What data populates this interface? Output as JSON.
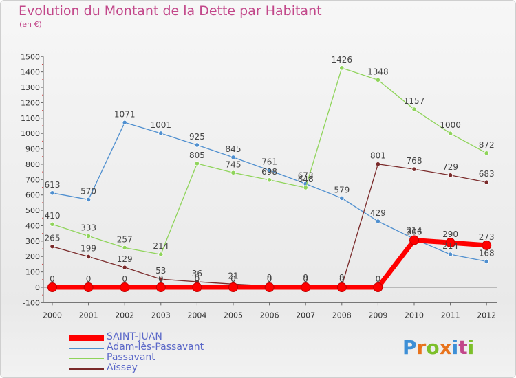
{
  "title": "Evolution du Montant de la Dette par Habitant",
  "subtitle": "(en €)",
  "logo": {
    "text": "Proxiti",
    "colors": [
      "#3d8fd6",
      "#e8731c",
      "#7cbf2a",
      "#e8731c",
      "#3d8fd6",
      "#c2478a",
      "#7cbf2a"
    ]
  },
  "chart_data": {
    "type": "line",
    "x": [
      "2000",
      "2001",
      "2002",
      "2003",
      "2004",
      "2005",
      "2006",
      "2007",
      "2008",
      "2009",
      "2010",
      "2011",
      "2012"
    ],
    "ylim": [
      -100,
      1500
    ],
    "yticks": [
      -100,
      0,
      100,
      200,
      300,
      400,
      500,
      600,
      700,
      800,
      900,
      1000,
      1100,
      1200,
      1300,
      1400,
      1500
    ],
    "grid": false,
    "legend_position": "bottom-left",
    "series": [
      {
        "name": "SAINT-JUAN",
        "color": "#ff0000",
        "values": [
          0,
          0,
          0,
          0,
          0,
          0,
          0,
          0,
          0,
          0,
          306,
          290,
          273
        ],
        "labels": [
          "0",
          "0",
          "0",
          "0",
          "0",
          "0",
          "0",
          "0",
          "0",
          "0",
          "306",
          "290",
          "273"
        ],
        "highlight": true
      },
      {
        "name": "Adam-lès-Passavant",
        "color": "#4f8fcf",
        "values": [
          613,
          570,
          1071,
          1001,
          925,
          845,
          761,
          673,
          579,
          429,
          314,
          214,
          168
        ],
        "labels": [
          "613",
          "570",
          "1071",
          "1001",
          "925",
          "845",
          "761",
          "673",
          "579",
          "429",
          "314",
          "214",
          "168"
        ]
      },
      {
        "name": "Passavant",
        "color": "#8fd45a",
        "values": [
          410,
          333,
          257,
          214,
          805,
          745,
          698,
          648,
          1426,
          1348,
          1157,
          1000,
          872
        ],
        "labels": [
          "410",
          "333",
          "257",
          "214",
          "805",
          "745",
          "698",
          "648",
          "1426",
          "1348",
          "1157",
          "1000",
          "872"
        ]
      },
      {
        "name": "Aïssey",
        "color": "#7a2a2a",
        "values": [
          265,
          199,
          129,
          53,
          36,
          21,
          9,
          9,
          9,
          801,
          768,
          729,
          683
        ],
        "labels": [
          "265",
          "199",
          "129",
          "53",
          "36",
          "21",
          "9",
          "9",
          "9",
          "801",
          "768",
          "729",
          "683"
        ]
      }
    ]
  }
}
